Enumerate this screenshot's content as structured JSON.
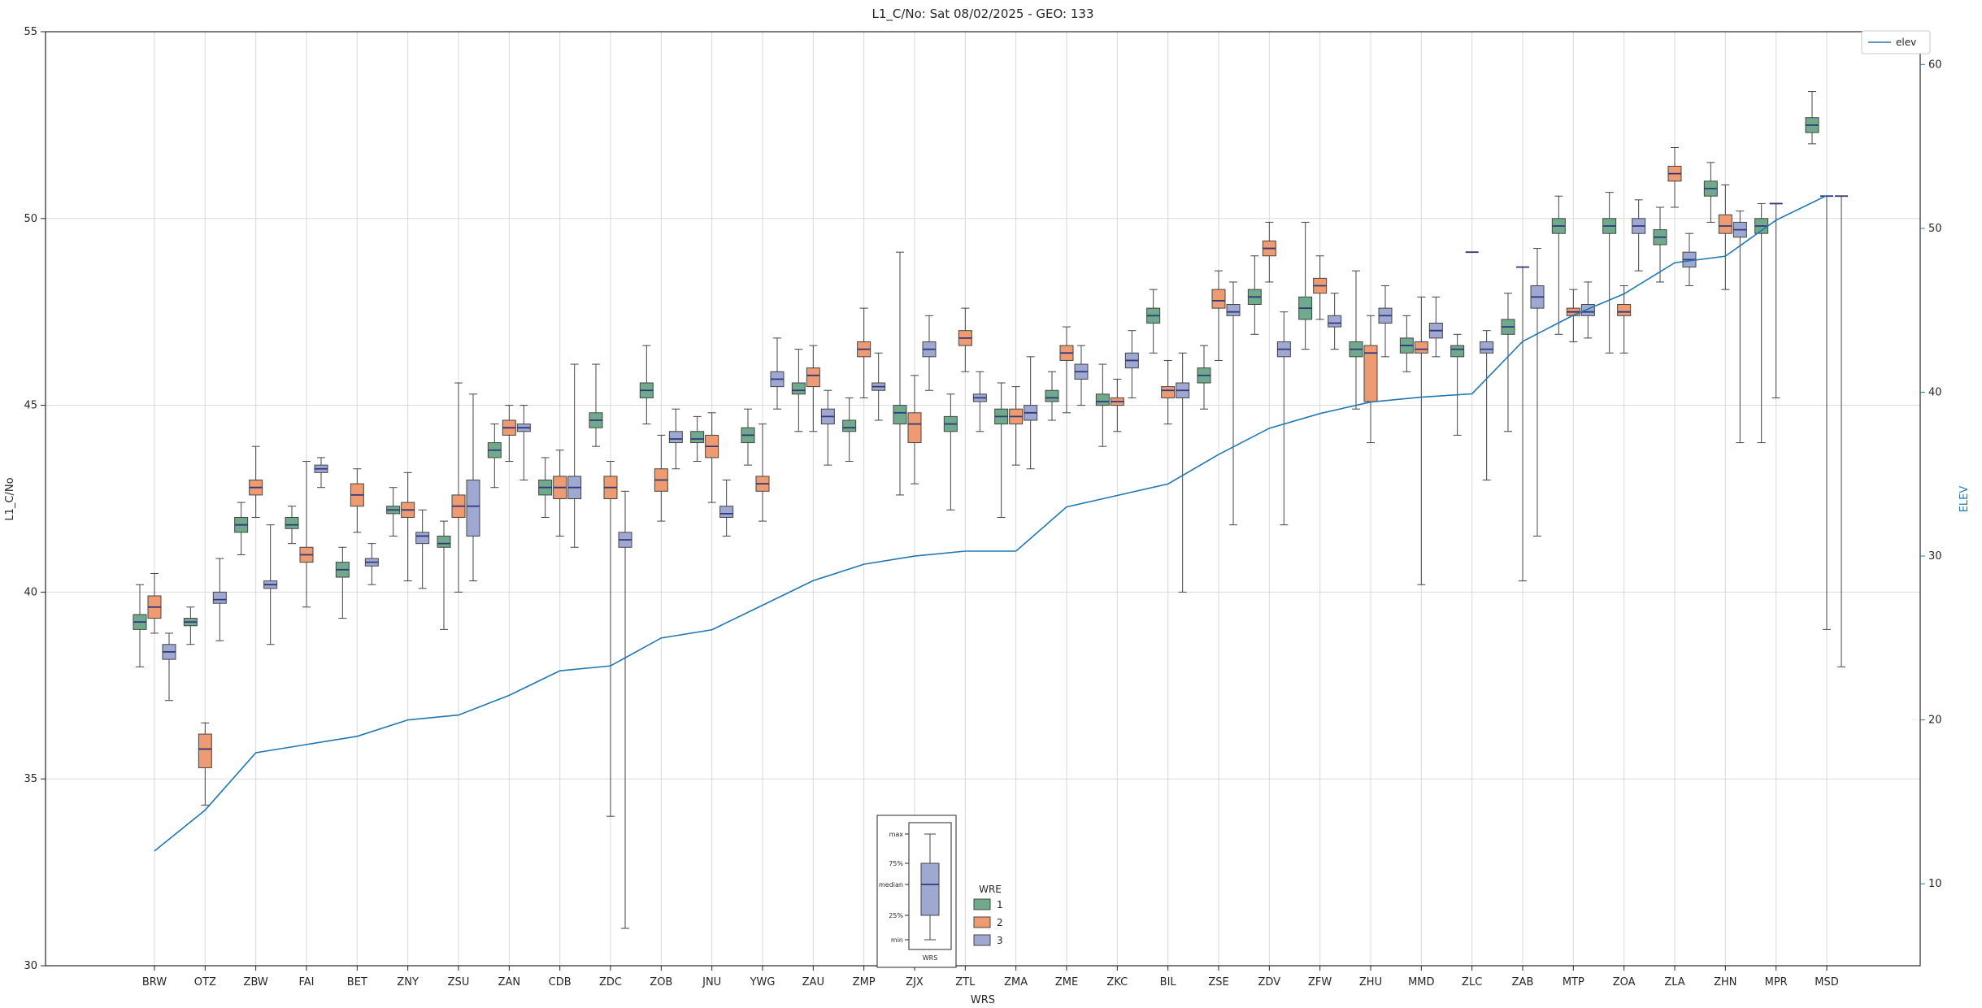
{
  "chart_data": {
    "type": "boxplot",
    "title": "L1_C/No: Sat 08/02/2025 - GEO: 133",
    "xlabel": "WRS",
    "ylabel_left": "L1_C/No",
    "ylabel_right": "ELEV",
    "ylim_left": [
      30,
      55
    ],
    "yticks_left": [
      30,
      35,
      40,
      45,
      50,
      55
    ],
    "ylim_right": [
      5,
      62
    ],
    "yticks_right": [
      10,
      20,
      30,
      40,
      50,
      60
    ],
    "grid": true,
    "colors": {
      "wre1": "#6faa8c",
      "wre2": "#ee9b72",
      "wre3": "#9fa8d0",
      "median": "#30387e",
      "edge": "#444444",
      "grid": "#d9d9d9",
      "line": "#1f77b4",
      "spine": "#262626"
    },
    "categories": [
      "BRW",
      "OTZ",
      "ZBW",
      "FAI",
      "BET",
      "ZNY",
      "ZSU",
      "ZAN",
      "CDB",
      "ZDC",
      "ZOB",
      "JNU",
      "YWG",
      "ZAU",
      "ZMP",
      "ZJX",
      "ZTL",
      "ZMA",
      "ZME",
      "ZKC",
      "BIL",
      "ZSE",
      "ZDV",
      "ZFW",
      "ZHU",
      "MMD",
      "ZLC",
      "ZAB",
      "MTP",
      "ZOA",
      "ZLA",
      "ZHN",
      "MPR",
      "MSD"
    ],
    "series": [
      {
        "name": "1",
        "color": "#6faa8c",
        "boxes": [
          [
            38.0,
            39.0,
            39.2,
            39.4,
            40.2
          ],
          [
            38.6,
            39.1,
            39.2,
            39.3,
            39.6
          ],
          [
            41.0,
            41.6,
            41.8,
            42.0,
            42.4
          ],
          [
            41.3,
            41.7,
            41.8,
            42.0,
            42.3
          ],
          [
            39.3,
            40.4,
            40.6,
            40.8,
            41.2
          ],
          [
            41.5,
            42.1,
            42.2,
            42.3,
            42.8
          ],
          [
            39.0,
            41.2,
            41.3,
            41.5,
            41.9
          ],
          [
            42.8,
            43.6,
            43.8,
            44.0,
            44.5
          ],
          [
            42.0,
            42.6,
            42.8,
            43.0,
            43.6
          ],
          [
            43.9,
            44.4,
            44.6,
            44.8,
            46.1
          ],
          [
            44.5,
            45.2,
            45.4,
            45.6,
            46.6
          ],
          [
            43.5,
            44.0,
            44.1,
            44.3,
            44.7
          ],
          [
            43.4,
            44.0,
            44.2,
            44.4,
            44.9
          ],
          [
            44.3,
            45.3,
            45.4,
            45.6,
            46.5
          ],
          [
            43.5,
            44.3,
            44.4,
            44.6,
            45.2
          ],
          [
            42.6,
            44.5,
            44.8,
            45.0,
            49.1
          ],
          [
            42.2,
            44.3,
            44.5,
            44.7,
            45.3
          ],
          [
            42.0,
            44.5,
            44.7,
            44.9,
            45.6
          ],
          [
            44.6,
            45.1,
            45.2,
            45.4,
            45.9
          ],
          [
            43.9,
            45.0,
            45.1,
            45.3,
            46.1
          ],
          [
            46.4,
            47.2,
            47.4,
            47.6,
            48.1
          ],
          [
            44.9,
            45.6,
            45.8,
            46.0,
            46.6
          ],
          [
            46.9,
            47.7,
            47.9,
            48.1,
            49.0
          ],
          [
            46.5,
            47.3,
            47.6,
            47.9,
            49.9
          ],
          [
            44.9,
            46.3,
            46.5,
            46.7,
            48.6
          ],
          [
            45.9,
            46.4,
            46.6,
            46.8,
            47.4
          ],
          [
            44.2,
            46.3,
            46.5,
            46.6,
            46.9
          ],
          [
            44.3,
            46.9,
            47.1,
            47.3,
            48.0
          ],
          [
            46.9,
            49.6,
            49.8,
            50.0,
            50.6
          ],
          [
            46.4,
            49.6,
            49.8,
            50.0,
            50.7
          ],
          [
            48.3,
            49.3,
            49.5,
            49.7,
            50.3
          ],
          [
            49.9,
            50.6,
            50.8,
            51.0,
            51.5
          ],
          [
            44.0,
            49.6,
            49.8,
            50.0,
            50.4
          ],
          [
            52.0,
            52.3,
            52.5,
            52.7,
            53.4
          ]
        ]
      },
      {
        "name": "2",
        "color": "#ee9b72",
        "boxes": [
          [
            38.9,
            39.3,
            39.6,
            39.9,
            40.5
          ],
          [
            34.3,
            35.3,
            35.8,
            36.2,
            36.5
          ],
          [
            42.0,
            42.6,
            42.8,
            43.0,
            43.9
          ],
          [
            39.6,
            40.8,
            41.0,
            41.2,
            43.5
          ],
          [
            41.6,
            42.3,
            42.6,
            42.9,
            43.3
          ],
          [
            40.3,
            42.0,
            42.2,
            42.4,
            43.2
          ],
          [
            40.0,
            42.0,
            42.3,
            42.6,
            45.6
          ],
          [
            43.5,
            44.2,
            44.4,
            44.6,
            45.0
          ],
          [
            41.5,
            42.5,
            42.8,
            43.1,
            43.8
          ],
          [
            34.0,
            42.5,
            42.8,
            43.1,
            43.5
          ],
          [
            41.9,
            42.7,
            43.0,
            43.3,
            44.2
          ],
          [
            42.4,
            43.6,
            43.9,
            44.2,
            44.8
          ],
          [
            41.9,
            42.7,
            42.9,
            43.1,
            44.5
          ],
          [
            44.3,
            45.5,
            45.8,
            46.0,
            46.6
          ],
          [
            45.2,
            46.3,
            46.5,
            46.7,
            47.6
          ],
          [
            42.9,
            44.0,
            44.5,
            44.8,
            45.8
          ],
          [
            45.9,
            46.6,
            46.8,
            47.0,
            47.6
          ],
          [
            43.4,
            44.5,
            44.7,
            44.9,
            45.5
          ],
          [
            44.8,
            46.2,
            46.4,
            46.6,
            47.1
          ],
          [
            44.3,
            45.0,
            45.1,
            45.2,
            45.7
          ],
          [
            44.5,
            45.2,
            45.4,
            45.5,
            46.2
          ],
          [
            46.2,
            47.6,
            47.8,
            48.1,
            48.6
          ],
          [
            48.3,
            49.0,
            49.2,
            49.4,
            49.9
          ],
          [
            47.3,
            48.0,
            48.2,
            48.4,
            49.0
          ],
          [
            44.0,
            45.1,
            46.4,
            46.6,
            47.4
          ],
          [
            40.2,
            46.4,
            46.5,
            46.7,
            47.9
          ],
          [
            49.1,
            49.1,
            49.1,
            49.1,
            49.1
          ],
          [
            40.3,
            48.7,
            48.7,
            48.7,
            48.7
          ],
          [
            46.7,
            47.4,
            47.5,
            47.6,
            48.1
          ],
          [
            46.4,
            47.4,
            47.5,
            47.7,
            48.2
          ],
          [
            50.3,
            51.0,
            51.2,
            51.4,
            51.9
          ],
          [
            48.1,
            49.6,
            49.8,
            50.1,
            50.9
          ],
          [
            45.2,
            50.4,
            50.4,
            50.4,
            50.4
          ],
          [
            39.0,
            50.6,
            50.6,
            50.6,
            50.6
          ]
        ]
      },
      {
        "name": "3",
        "color": "#9fa8d0",
        "boxes": [
          [
            37.1,
            38.2,
            38.4,
            38.6,
            38.9
          ],
          [
            38.7,
            39.7,
            39.8,
            40.0,
            40.9
          ],
          [
            38.6,
            40.1,
            40.2,
            40.3,
            41.8
          ],
          [
            42.8,
            43.2,
            43.3,
            43.4,
            43.6
          ],
          [
            40.2,
            40.7,
            40.8,
            40.9,
            41.3
          ],
          [
            40.1,
            41.3,
            41.5,
            41.6,
            42.2
          ],
          [
            40.3,
            41.5,
            42.3,
            43.0,
            45.3
          ],
          [
            43.0,
            44.3,
            44.4,
            44.5,
            45.0
          ],
          [
            41.2,
            42.5,
            42.8,
            43.1,
            46.1
          ],
          [
            31.0,
            41.2,
            41.4,
            41.6,
            42.7
          ],
          [
            43.3,
            44.0,
            44.1,
            44.3,
            44.9
          ],
          [
            41.5,
            42.0,
            42.1,
            42.3,
            43.0
          ],
          [
            44.9,
            45.5,
            45.7,
            45.9,
            46.8
          ],
          [
            43.4,
            44.5,
            44.7,
            44.9,
            45.4
          ],
          [
            44.6,
            45.4,
            45.5,
            45.6,
            46.4
          ],
          [
            45.4,
            46.3,
            46.5,
            46.7,
            47.4
          ],
          [
            44.3,
            45.1,
            45.2,
            45.3,
            45.9
          ],
          [
            43.3,
            44.6,
            44.8,
            45.0,
            46.3
          ],
          [
            45.0,
            45.7,
            45.9,
            46.1,
            46.6
          ],
          [
            45.2,
            46.0,
            46.2,
            46.4,
            47.0
          ],
          [
            40.0,
            45.2,
            45.4,
            45.6,
            46.4
          ],
          [
            41.8,
            47.4,
            47.5,
            47.7,
            48.3
          ],
          [
            41.8,
            46.3,
            46.5,
            46.7,
            47.5
          ],
          [
            46.5,
            47.1,
            47.2,
            47.4,
            48.0
          ],
          [
            46.3,
            47.2,
            47.4,
            47.6,
            48.2
          ],
          [
            46.3,
            46.8,
            47.0,
            47.2,
            47.9
          ],
          [
            43.0,
            46.4,
            46.5,
            46.7,
            47.0
          ],
          [
            41.5,
            47.6,
            47.9,
            48.2,
            49.2
          ],
          [
            46.8,
            47.4,
            47.5,
            47.7,
            48.3
          ],
          [
            48.6,
            49.6,
            49.8,
            50.0,
            50.5
          ],
          [
            48.2,
            48.7,
            48.9,
            49.1,
            49.6
          ],
          [
            44.0,
            49.5,
            49.7,
            49.9,
            50.2
          ],
          null,
          [
            38.0,
            50.6,
            50.6,
            50.6,
            50.6
          ]
        ]
      }
    ],
    "line": {
      "name": "elev",
      "color": "#1f77b4",
      "values": [
        12,
        14.5,
        18,
        18.5,
        19,
        20,
        20.3,
        21.5,
        23,
        23.3,
        25,
        25.5,
        27,
        28.5,
        29.5,
        30,
        30.3,
        30.3,
        33,
        33.7,
        34.4,
        36.2,
        37.8,
        38.7,
        39.4,
        39.7,
        39.9,
        43.1,
        44.7,
        46,
        47.9,
        48.3,
        50.5,
        52
      ]
    },
    "legends": {
      "elev_label": "elev",
      "wre_title": "WRE",
      "wre_entries": [
        "1",
        "2",
        "3"
      ]
    },
    "inset": {
      "labels": [
        "max",
        "75%",
        "median",
        "25%",
        "min"
      ],
      "xlabel": "WRS"
    }
  }
}
